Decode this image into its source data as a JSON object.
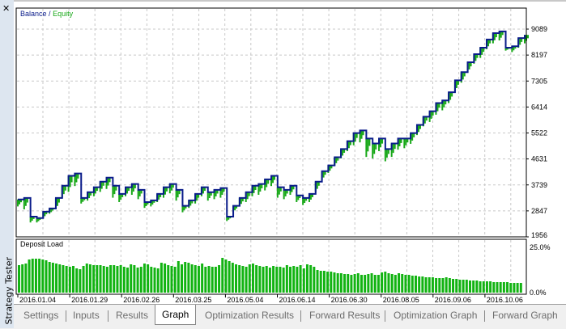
{
  "window": {
    "title": "Strategy Tester",
    "close_icon": "close-icon"
  },
  "legend": {
    "balance": "Balance",
    "sep": "/",
    "equity": "Equity",
    "balance_color": "#0a1c8a",
    "equity_color": "#18a818"
  },
  "y_axis": [
    "9089",
    "8197",
    "7305",
    "6414",
    "5522",
    "4631",
    "3739",
    "2847",
    "1956"
  ],
  "load_axis": {
    "title": "Deposit Load",
    "max": "25.0%",
    "min": "0.0%"
  },
  "x_axis": [
    "2016.01.04",
    "2016.01.29",
    "2016.02.26",
    "2016.03.25",
    "2016.05.04",
    "2016.06.14",
    "2016.06.30",
    "2016.08.05",
    "2016.09.06",
    "2016.10.06"
  ],
  "tabs": [
    {
      "label": "Settings"
    },
    {
      "label": "Inputs"
    },
    {
      "label": "Results"
    },
    {
      "label": "Graph",
      "active": true
    },
    {
      "label": "Optimization Results"
    },
    {
      "label": "Forward Results"
    },
    {
      "label": "Optimization Graph"
    },
    {
      "label": "Forward Graph"
    }
  ],
  "chart_data": [
    {
      "type": "line",
      "title": "Balance / Equity",
      "ylim": [
        1956,
        9089
      ],
      "grid": true,
      "series": [
        {
          "name": "Balance",
          "values": [
            3240,
            3290,
            2650,
            2600,
            2820,
            2930,
            3290,
            3710,
            4050,
            4130,
            3290,
            3490,
            3660,
            3850,
            3990,
            3710,
            3430,
            3660,
            3770,
            3570,
            3150,
            3210,
            3430,
            3660,
            3770,
            3570,
            3020,
            3210,
            3430,
            3660,
            3490,
            3570,
            3630,
            2650,
            3020,
            3290,
            3490,
            3710,
            3770,
            3930,
            4050,
            3660,
            3570,
            3710,
            3380,
            3290,
            3430,
            3850,
            4210,
            4410,
            4690,
            4970,
            5240,
            5520,
            5610,
            5330,
            5160,
            5330,
            4970,
            5160,
            5330,
            5330,
            5520,
            5800,
            6080,
            6270,
            6550,
            6640,
            6920,
            7330,
            7610,
            7950,
            8230,
            8450,
            8730,
            8950,
            9010,
            8450,
            8500,
            8780,
            8890
          ]
        },
        {
          "name": "Equity",
          "values": [
            3000,
            2900,
            2450,
            2450,
            2600,
            2750,
            2900,
            3300,
            3500,
            3700,
            3100,
            3200,
            3350,
            3500,
            3600,
            3300,
            3150,
            3350,
            3400,
            3250,
            2950,
            3000,
            3150,
            3300,
            3450,
            3200,
            2800,
            2950,
            3100,
            3350,
            3200,
            3250,
            3300,
            2500,
            2800,
            3000,
            3150,
            3350,
            3400,
            3550,
            3700,
            3300,
            3250,
            3400,
            3150,
            3050,
            3150,
            3500,
            3900,
            4150,
            4400,
            4650,
            4900,
            5100,
            5200,
            4700,
            4650,
            4900,
            4550,
            4700,
            4950,
            5000,
            5150,
            5450,
            5750,
            5900,
            6150,
            6300,
            6550,
            6950,
            7250,
            7600,
            7900,
            8100,
            8400,
            8600,
            8700,
            8350,
            8300,
            8450,
            8600
          ]
        }
      ]
    },
    {
      "type": "bar",
      "title": "Deposit Load",
      "ylim": [
        0,
        25
      ],
      "unit": "%",
      "values": [
        17,
        17.5,
        18,
        20.5,
        21,
        21,
        21,
        20.5,
        20,
        19,
        18.5,
        18,
        17.5,
        17,
        16.5,
        16,
        16.5,
        15,
        14.5,
        16.5,
        18,
        17.5,
        17,
        17,
        17,
        16.5,
        16,
        17,
        17,
        16.5,
        17,
        16,
        15.5,
        17.5,
        17,
        15.5,
        16,
        18,
        17.5,
        16,
        15.5,
        15,
        18.5,
        18,
        17,
        16.5,
        16,
        19.5,
        17.5,
        19,
        18.5,
        17.5,
        17,
        16.5,
        18,
        16,
        16.5,
        16,
        16,
        17,
        21.5,
        20.5,
        19.5,
        18.5,
        17.5,
        17,
        16.5,
        16,
        17.5,
        18,
        17,
        16.5,
        16,
        16.5,
        15.5,
        16.5,
        16,
        16,
        15.5,
        17,
        16,
        16.5,
        16,
        17,
        15,
        17.5,
        17,
        16,
        14,
        13.5,
        13.5,
        13,
        13,
        12.5,
        12,
        12,
        11.5,
        11.5,
        11,
        11.5,
        12,
        11,
        11,
        11.5,
        12,
        11,
        11,
        12.5,
        13,
        12,
        11.5,
        11,
        12,
        11.5,
        11,
        11,
        10.5,
        10.5,
        10,
        10,
        9.5,
        9.5,
        9.5,
        9,
        9,
        9,
        9.5,
        9,
        8.5,
        8.5,
        8,
        8,
        8,
        7.5,
        7.5,
        7.5,
        7,
        7,
        7,
        7,
        6.5,
        6.5,
        6.5,
        6.5,
        6.5,
        6,
        6,
        6,
        6
      ]
    }
  ]
}
